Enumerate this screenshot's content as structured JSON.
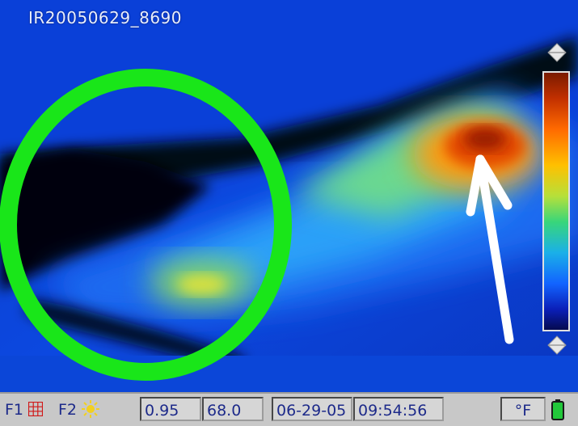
{
  "image_id": "IR20050629_8690",
  "status_bar": {
    "f1_label": "F1",
    "f1_icon": "grid-icon",
    "f2_label": "F2",
    "f2_icon": "sun-icon",
    "emissivity": "0.95",
    "reflected_temp": "68.0",
    "date": "06-29-05",
    "time": "09:54:56",
    "unit": "°F",
    "battery_icon": "battery-icon"
  },
  "overlay": {
    "circle_color": "#19e619",
    "arrow_color": "#ffffff"
  },
  "palette": {
    "scale": [
      "#7a1a00",
      "#c23000",
      "#ff6a00",
      "#ffc000",
      "#b6e03a",
      "#38d67a",
      "#1ab0e8",
      "#1264ff",
      "#0b1fb8",
      "#050a50"
    ]
  }
}
